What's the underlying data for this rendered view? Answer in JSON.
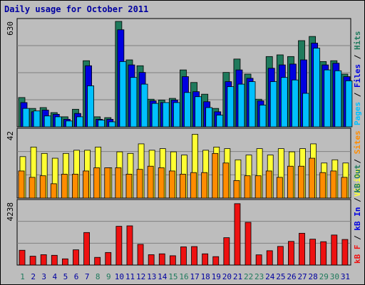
{
  "title": "Daily usage for October 2011",
  "colors": {
    "hits": "#1f7a5c",
    "files": "#0000e0",
    "pages": "#00c0ff",
    "visits": "#ffff33",
    "sites": "#ff8c00",
    "kb": "#ee1111",
    "weekend": "#1f7a5c",
    "weekday": "#0000a0",
    "panel": "#bdbdbd",
    "grid": "#808080"
  },
  "chart_data": [
    {
      "type": "bar",
      "ymax_label": "630",
      "ymax": 630,
      "legend": [
        {
          "key": "pages",
          "text": "Pages",
          "sep": " / "
        },
        {
          "key": "files",
          "text": "Files",
          "sep": " / "
        },
        {
          "key": "hits",
          "text": "Hits",
          "sep": ""
        }
      ],
      "categories": [
        "1",
        "2",
        "3",
        "4",
        "5",
        "6",
        "7",
        "8",
        "9",
        "10",
        "11",
        "12",
        "13",
        "14",
        "15",
        "16",
        "17",
        "18",
        "19",
        "20",
        "21",
        "22",
        "23",
        "24",
        "25",
        "26",
        "27",
        "28",
        "29",
        "30",
        "31"
      ],
      "series": [
        {
          "name": "Hits",
          "key": "hits",
          "values": [
            175,
            110,
            115,
            85,
            60,
            105,
            395,
            60,
            55,
            630,
            400,
            365,
            165,
            160,
            170,
            340,
            265,
            195,
            110,
            325,
            405,
            315,
            165,
            420,
            430,
            420,
            515,
            540,
            390,
            395,
            315
          ]
        },
        {
          "name": "Files",
          "key": "files",
          "values": [
            145,
            90,
            100,
            75,
            45,
            80,
            365,
            45,
            45,
            580,
            370,
            325,
            155,
            145,
            160,
            300,
            210,
            150,
            90,
            270,
            340,
            290,
            155,
            350,
            370,
            375,
            400,
            500,
            370,
            380,
            300
          ]
        },
        {
          "name": "Pages",
          "key": "pages",
          "values": [
            110,
            95,
            65,
            60,
            35,
            60,
            245,
            40,
            30,
            390,
            295,
            255,
            140,
            145,
            145,
            205,
            180,
            115,
            70,
            240,
            255,
            270,
            130,
            270,
            295,
            280,
            200,
            470,
            340,
            335,
            275
          ]
        }
      ]
    },
    {
      "type": "bar",
      "ymax_label": "42",
      "ymax": 42,
      "legend": [
        {
          "key": "visits",
          "text": "Visits",
          "sep": " / "
        },
        {
          "key": "sites",
          "text": "Sites",
          "sep": ""
        }
      ],
      "categories": [
        "1",
        "2",
        "3",
        "4",
        "5",
        "6",
        "7",
        "8",
        "9",
        "10",
        "11",
        "12",
        "13",
        "14",
        "15",
        "16",
        "17",
        "18",
        "19",
        "20",
        "21",
        "22",
        "23",
        "24",
        "25",
        "26",
        "27",
        "28",
        "29",
        "30",
        "31"
      ],
      "series": [
        {
          "name": "Visits",
          "key": "visits",
          "values": [
            26,
            32,
            28,
            25,
            28,
            30,
            30,
            32,
            19,
            29,
            28,
            34,
            30,
            31,
            29,
            27,
            40,
            30,
            32,
            31,
            24,
            27,
            31,
            27,
            31,
            29,
            31,
            34,
            22,
            24,
            22
          ]
        },
        {
          "name": "Sites",
          "key": "sites",
          "values": [
            17,
            13,
            14,
            9,
            15,
            15,
            17,
            19,
            19,
            19,
            15,
            18,
            20,
            19,
            17,
            15,
            16,
            16,
            28,
            22,
            11,
            14,
            14,
            17,
            13,
            20,
            20,
            25,
            16,
            17,
            13
          ]
        }
      ]
    },
    {
      "type": "bar",
      "ymax_label": "4238",
      "ymax": 4238,
      "legend": [
        {
          "key": "kb",
          "text": "kB F",
          "sep": " / "
        },
        {
          "key": "files",
          "text": "kB In",
          "sep": " / "
        },
        {
          "key": "hits",
          "text": "kB Out",
          "sep": ""
        }
      ],
      "categories": [
        "1",
        "2",
        "3",
        "4",
        "5",
        "6",
        "7",
        "8",
        "9",
        "10",
        "11",
        "12",
        "13",
        "14",
        "15",
        "16",
        "17",
        "18",
        "19",
        "20",
        "21",
        "22",
        "23",
        "24",
        "25",
        "26",
        "27",
        "28",
        "29",
        "30",
        "31"
      ],
      "series": [
        {
          "name": "kB F",
          "key": "kb",
          "values": [
            1000,
            600,
            700,
            660,
            420,
            1030,
            2200,
            520,
            850,
            2620,
            2650,
            1400,
            700,
            760,
            630,
            1230,
            1250,
            760,
            570,
            1850,
            4150,
            2890,
            690,
            970,
            1260,
            1600,
            2150,
            1750,
            1580,
            2030,
            1730
          ]
        }
      ]
    }
  ],
  "days": [
    "1",
    "2",
    "3",
    "4",
    "5",
    "6",
    "7",
    "8",
    "9",
    "10",
    "11",
    "12",
    "13",
    "14",
    "15",
    "16",
    "17",
    "18",
    "19",
    "20",
    "21",
    "22",
    "23",
    "24",
    "25",
    "26",
    "27",
    "28",
    "29",
    "30",
    "31"
  ],
  "weekends": [
    1,
    8,
    9,
    15,
    16,
    22,
    23,
    29,
    30
  ]
}
